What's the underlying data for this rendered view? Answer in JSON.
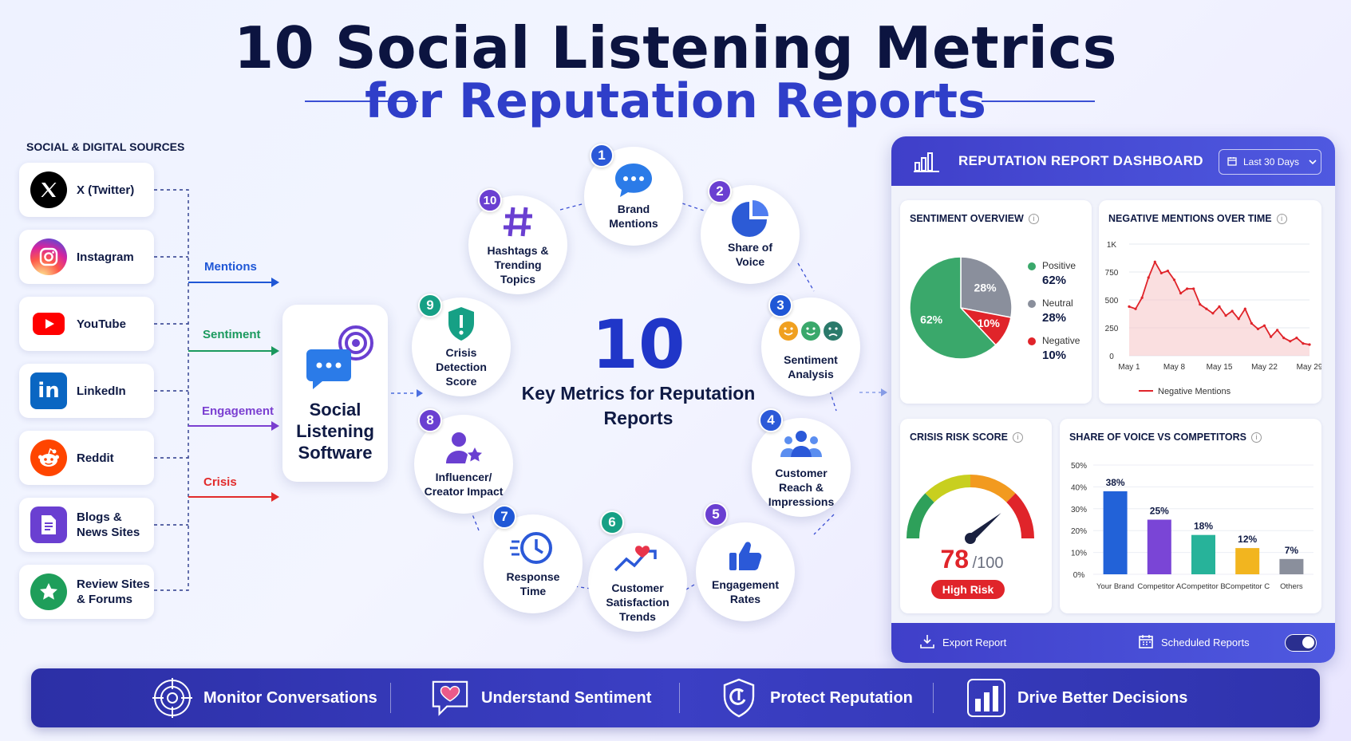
{
  "title": {
    "line1": "10 Social Listening Metrics",
    "line2": "for Reputation Reports"
  },
  "sources": {
    "heading": "SOCIAL & DIGITAL SOURCES",
    "items": [
      {
        "label": "X (Twitter)",
        "icon": "x-logo-icon",
        "color": "#000000"
      },
      {
        "label": "Instagram",
        "icon": "instagram-logo-icon",
        "color": "#d6249f"
      },
      {
        "label": "YouTube",
        "icon": "youtube-logo-icon",
        "color": "#ff0000"
      },
      {
        "label": "LinkedIn",
        "icon": "linkedin-logo-icon",
        "color": "#0a66c2"
      },
      {
        "label": "Reddit",
        "icon": "reddit-logo-icon",
        "color": "#ff4500"
      },
      {
        "label": "Blogs & News Sites",
        "icon": "document-icon",
        "color": "#6a3fd1"
      },
      {
        "label": "Review Sites & Forums",
        "icon": "star-icon",
        "color": "#1e9e5a"
      }
    ]
  },
  "flows": [
    {
      "label": "Mentions",
      "color": "#1f57d6"
    },
    {
      "label": "Sentiment",
      "color": "#1b9a5e"
    },
    {
      "label": "Engagement",
      "color": "#7b3fd1"
    },
    {
      "label": "Crisis",
      "color": "#e22b2b"
    }
  ],
  "hub": {
    "label": "Social Listening Software",
    "icon": "chat-signal-icon"
  },
  "center": {
    "number": "10",
    "label": "Key Metrics for Reputation Reports"
  },
  "metrics": [
    {
      "n": "1",
      "label": "Brand Mentions",
      "icon": "speech-bubble-icon",
      "color": "#2b59d8"
    },
    {
      "n": "2",
      "label": "Share of Voice",
      "icon": "pie-chart-icon",
      "color": "#6a3fd1"
    },
    {
      "n": "3",
      "label": "Sentiment Analysis",
      "icon": "emoji-faces-icon",
      "color": "#1f57d6"
    },
    {
      "n": "4",
      "label": "Customer Reach & Impressions",
      "icon": "people-group-icon",
      "color": "#2b59d8"
    },
    {
      "n": "5",
      "label": "Engagement Rates",
      "icon": "thumbs-up-icon",
      "color": "#6a3fd1"
    },
    {
      "n": "6",
      "label": "Customer Satisfaction Trends",
      "icon": "trend-heart-icon",
      "color": "#16a085"
    },
    {
      "n": "7",
      "label": "Response Time",
      "icon": "fast-clock-icon",
      "color": "#1f57d6"
    },
    {
      "n": "8",
      "label": "Influencer/ Creator Impact",
      "icon": "influencer-star-icon",
      "color": "#6a3fd1"
    },
    {
      "n": "9",
      "label": "Crisis Detection Score",
      "icon": "shield-alert-icon",
      "color": "#16a085"
    },
    {
      "n": "10",
      "label": "Hashtags & Trending Topics",
      "icon": "hashtag-icon",
      "color": "#6a3fd1"
    }
  ],
  "dashboard": {
    "title": "REPUTATION REPORT DASHBOARD",
    "range": "Last 30 Days",
    "sentiment": {
      "title": "SENTIMENT OVERVIEW",
      "slices": [
        {
          "label": "Positive",
          "value": 62,
          "text": "62%",
          "color": "#3aa86b"
        },
        {
          "label": "Neutral",
          "value": 28,
          "text": "28%",
          "color": "#8a8f9c"
        },
        {
          "label": "Negative",
          "value": 10,
          "text": "10%",
          "color": "#e0242a"
        }
      ]
    },
    "negative": {
      "title": "NEGATIVE MENTIONS OVER TIME",
      "yticks": [
        "1K",
        "750",
        "500",
        "250",
        "0"
      ],
      "xticks": [
        "May 1",
        "May 8",
        "May 15",
        "May 22",
        "May 29"
      ],
      "legend": "Negative Mentions",
      "ymax": 1000,
      "values": [
        440,
        420,
        520,
        700,
        840,
        740,
        760,
        680,
        560,
        600,
        600,
        460,
        420,
        380,
        440,
        360,
        400,
        330,
        420,
        290,
        240,
        270,
        170,
        230,
        160,
        130,
        160,
        110,
        100
      ]
    },
    "crisis": {
      "title": "CRISIS RISK SCORE",
      "score": "78",
      "max": "/100",
      "value": 78,
      "badge": "High Risk"
    },
    "sov": {
      "title": "SHARE OF VOICE VS COMPETITORS",
      "yticks": [
        "50%",
        "40%",
        "30%",
        "20%",
        "10%",
        "0%"
      ],
      "ymax": 50,
      "bars": [
        {
          "label": "Your Brand",
          "value": 38,
          "text": "38%",
          "color": "#2262d8"
        },
        {
          "label": "Competitor A",
          "value": 25,
          "text": "25%",
          "color": "#7a45d6"
        },
        {
          "label": "Competitor B",
          "value": 18,
          "text": "18%",
          "color": "#27b39a"
        },
        {
          "label": "Competitor C",
          "value": 12,
          "text": "12%",
          "color": "#f2b51f"
        },
        {
          "label": "Others",
          "value": 7,
          "text": "7%",
          "color": "#8a8f9c"
        }
      ]
    },
    "footer": {
      "export": "Export Report",
      "scheduled": "Scheduled Reports"
    }
  },
  "benefits": [
    {
      "label": "Monitor Conversations",
      "icon": "target-icon"
    },
    {
      "label": "Understand Sentiment",
      "icon": "heart-chat-icon"
    },
    {
      "label": "Protect Reputation",
      "icon": "shield-icon"
    },
    {
      "label": "Drive Better Decisions",
      "icon": "bar-chart-icon"
    }
  ]
}
